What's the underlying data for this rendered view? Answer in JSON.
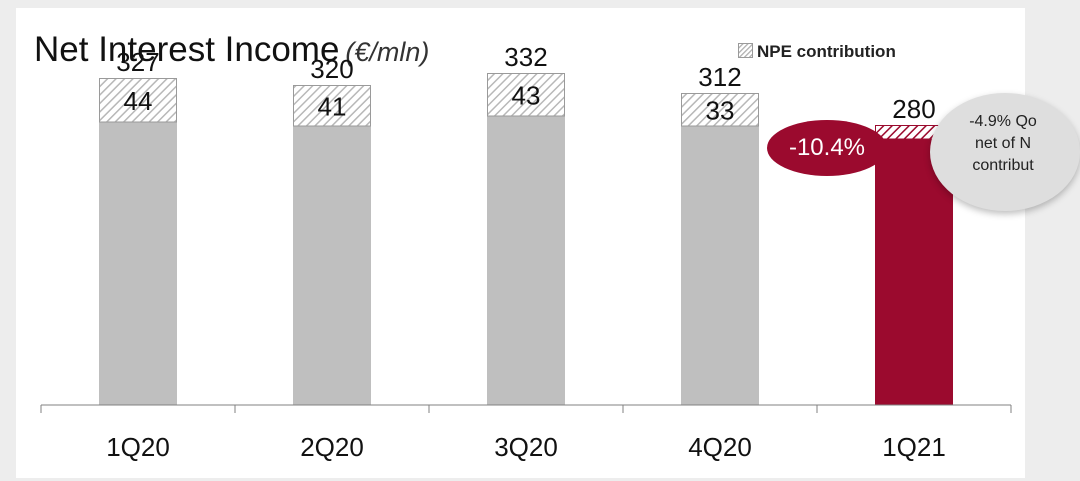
{
  "title": "Net Interest Income",
  "title_unit": "(€/mln)",
  "legend": {
    "label": "NPE contribution"
  },
  "badge": {
    "text": "-10.4%"
  },
  "note": {
    "lines": [
      "-4.9% Qo",
      "net of N",
      "contribut"
    ]
  },
  "colors": {
    "base_bar": "#bfbfbf",
    "highlight_bar": "#9b0a2e",
    "hatch_stroke": "#b8b8b8",
    "axis": "#808080"
  },
  "chart_data": {
    "type": "bar",
    "stacked": true,
    "categories": [
      "1Q20",
      "2Q20",
      "3Q20",
      "4Q20",
      "1Q21"
    ],
    "totals": [
      327,
      320,
      332,
      312,
      280
    ],
    "series": [
      {
        "values": [
          283,
          279,
          289,
          279,
          266
        ]
      },
      {
        "name": "NPE contribution",
        "values": [
          44,
          41,
          43,
          33,
          14
        ]
      }
    ],
    "highlight_category": "1Q21",
    "ylim": [
      0,
      390
    ],
    "grid": false,
    "legend_position": "top-right",
    "annotations": [
      "-10.4%",
      "-4.9% Qo net of N contribut"
    ]
  }
}
